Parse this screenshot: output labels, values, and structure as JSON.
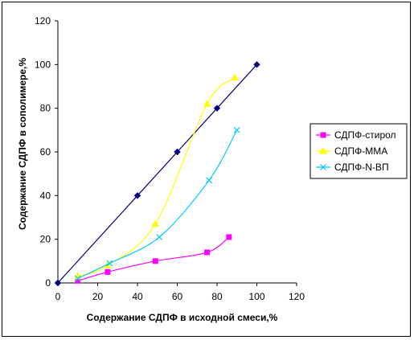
{
  "chart_data": {
    "type": "scatter",
    "title": "",
    "xlabel": "Содержание СДПФ в исходной смеси,%",
    "ylabel": "Содержание СДПФ в сополимере,%",
    "xlim": [
      0,
      120
    ],
    "ylim": [
      0,
      120
    ],
    "xticks": [
      "0",
      "20",
      "40",
      "60",
      "80",
      "100",
      "120"
    ],
    "yticks": [
      "0",
      "20",
      "40",
      "60",
      "80",
      "100",
      "120"
    ],
    "grid": false,
    "legend_position": "right",
    "series": [
      {
        "name": "",
        "color": "#000080",
        "marker": "diamond",
        "curve": "straight",
        "x": [
          0,
          40,
          60,
          80,
          100
        ],
        "y": [
          0,
          40,
          60,
          80,
          100
        ]
      },
      {
        "name": "СДПФ-стирол",
        "color": "#FF00FF",
        "marker": "square",
        "curve": "smooth",
        "x": [
          10,
          25,
          49,
          75,
          86
        ],
        "y": [
          1,
          5,
          10,
          14,
          21
        ]
      },
      {
        "name": "СДПФ-ММА",
        "color": "#FFFF00",
        "marker": "triangle",
        "curve": "smooth",
        "x": [
          10,
          25,
          49,
          75,
          89
        ],
        "y": [
          3,
          8,
          27,
          82,
          94
        ]
      },
      {
        "name": "СДПФ-N-ВП",
        "color": "#00CCFF",
        "marker": "x",
        "curve": "smooth",
        "x": [
          10,
          26,
          51,
          76,
          90
        ],
        "y": [
          2,
          9,
          21,
          47,
          70
        ]
      }
    ]
  }
}
